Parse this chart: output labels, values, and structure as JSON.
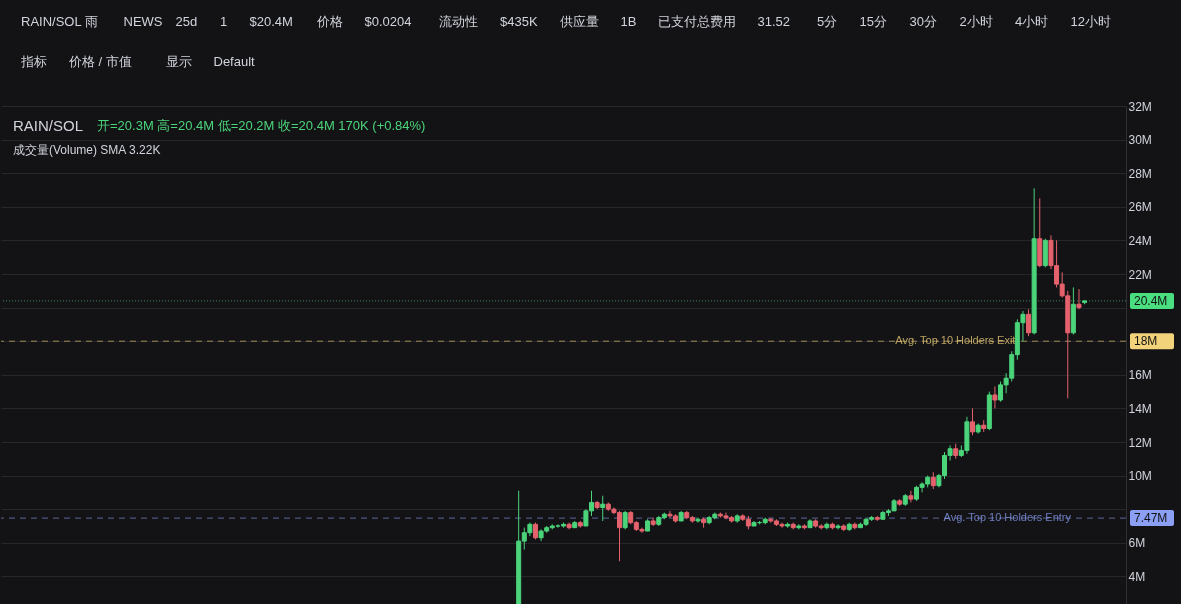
{
  "chart_data": {
    "type": "candlestick",
    "title": "RAIN/SOL",
    "subtitle": "开=20.3M  高=20.4M  低=20.2M  收=20.4M  170K (+0.84%)",
    "categories": [
      null,
      null,
      null,
      null,
      null,
      null,
      null,
      null,
      null,
      null,
      null,
      null,
      null,
      null,
      null,
      null,
      null,
      null,
      null,
      null,
      null,
      null,
      null,
      null,
      null,
      null,
      null,
      null,
      null,
      null,
      null,
      null,
      null,
      null,
      null,
      null,
      null,
      null,
      null,
      null,
      null,
      null,
      null,
      null,
      null,
      null,
      null,
      null,
      null,
      null,
      null,
      null,
      null,
      null,
      null,
      null,
      null,
      null,
      null,
      null,
      null,
      null,
      null,
      null,
      null,
      null,
      null,
      null,
      null,
      null,
      null,
      null,
      null,
      null,
      null,
      null,
      null,
      null,
      null,
      null,
      null,
      null,
      null,
      null,
      null,
      null,
      null,
      null,
      null,
      null,
      null,
      null,
      null,
      null,
      null,
      null,
      null,
      null,
      null,
      null,
      null,
      null,
      null,
      null,
      null,
      null,
      null,
      null,
      null,
      null,
      null,
      null,
      null,
      null,
      null,
      null,
      null,
      null,
      null,
      null,
      null,
      null,
      null,
      null,
      null,
      null,
      null,
      null,
      null,
      null,
      null,
      null,
      null,
      null,
      null,
      null,
      null,
      null,
      null,
      null,
      null,
      null,
      null,
      null,
      null,
      null,
      null,
      null,
      null,
      null,
      null,
      null,
      null,
      null,
      null,
      null,
      null,
      null,
      null,
      null,
      null,
      null,
      null,
      null,
      null,
      null,
      null,
      null,
      null,
      null,
      null,
      null,
      null,
      null,
      null,
      null,
      null,
      null,
      null,
      null,
      null,
      null,
      null,
      null,
      null,
      null,
      null,
      null,
      null,
      null,
      null,
      null,
      null,
      null,
      null,
      null,
      null,
      null,
      null
    ],
    "ohlc": [
      null,
      null,
      null,
      null,
      null,
      null,
      null,
      null,
      null,
      null,
      null,
      null,
      null,
      null,
      null,
      null,
      null,
      null,
      null,
      null,
      null,
      null,
      null,
      null,
      null,
      null,
      null,
      null,
      null,
      null,
      null,
      null,
      null,
      null,
      null,
      null,
      null,
      null,
      null,
      null,
      null,
      null,
      null,
      null,
      null,
      null,
      null,
      null,
      null,
      null,
      null,
      null,
      null,
      null,
      null,
      null,
      null,
      null,
      null,
      null,
      null,
      null,
      null,
      null,
      null,
      null,
      null,
      null,
      null,
      null,
      null,
      null,
      null,
      null,
      null,
      null,
      null,
      null,
      null,
      null,
      null,
      null,
      null,
      null,
      null,
      null,
      null,
      null,
      null,
      null,
      null,
      [
        2.1,
        9.1,
        2.0,
        6.1
      ],
      [
        6.1,
        6.9,
        5.6,
        6.6
      ],
      [
        6.6,
        7.2,
        6.4,
        7.1
      ],
      [
        7.1,
        7.2,
        6.2,
        6.3
      ],
      [
        6.3,
        6.8,
        6.1,
        6.7
      ],
      [
        6.7,
        7.0,
        6.6,
        6.9
      ],
      [
        6.9,
        7.1,
        6.8,
        7.0
      ],
      [
        7.0,
        7.1,
        6.9,
        7.0
      ],
      [
        7.0,
        7.2,
        6.9,
        7.1
      ],
      [
        7.1,
        7.2,
        6.8,
        6.9
      ],
      [
        6.9,
        7.3,
        6.9,
        7.2
      ],
      [
        7.2,
        7.3,
        6.9,
        7.0
      ],
      [
        7.0,
        8.0,
        7.0,
        7.9
      ],
      [
        7.9,
        9.1,
        7.6,
        8.4
      ],
      [
        8.4,
        8.5,
        8.0,
        8.1
      ],
      [
        8.1,
        8.8,
        7.3,
        8.3
      ],
      [
        8.3,
        8.4,
        7.9,
        8.0
      ],
      [
        8.0,
        8.1,
        7.7,
        7.8
      ],
      [
        7.8,
        7.9,
        4.9,
        6.9
      ],
      [
        6.9,
        7.9,
        6.8,
        7.8
      ],
      [
        7.8,
        7.9,
        7.1,
        7.2
      ],
      [
        7.2,
        7.3,
        6.7,
        6.8
      ],
      [
        6.8,
        6.9,
        6.6,
        6.7
      ],
      [
        6.7,
        7.4,
        6.7,
        7.3
      ],
      [
        7.3,
        7.5,
        7.0,
        7.1
      ],
      [
        7.1,
        7.6,
        7.0,
        7.5
      ],
      [
        7.5,
        7.8,
        7.4,
        7.7
      ],
      [
        7.7,
        7.9,
        7.5,
        7.6
      ],
      [
        7.6,
        7.7,
        7.2,
        7.3
      ],
      [
        7.3,
        7.9,
        7.3,
        7.8
      ],
      [
        7.8,
        7.9,
        7.4,
        7.5
      ],
      [
        7.5,
        7.6,
        7.2,
        7.3
      ],
      [
        7.3,
        7.5,
        7.2,
        7.4
      ],
      [
        7.4,
        7.5,
        6.9,
        7.2
      ],
      [
        7.2,
        7.6,
        7.1,
        7.5
      ],
      [
        7.5,
        7.8,
        7.4,
        7.7
      ],
      [
        7.7,
        7.8,
        7.5,
        7.6
      ],
      [
        7.6,
        7.8,
        7.4,
        7.5
      ],
      [
        7.5,
        7.6,
        7.2,
        7.3
      ],
      [
        7.3,
        7.7,
        7.2,
        7.6
      ],
      [
        7.6,
        7.7,
        7.3,
        7.4
      ],
      [
        7.4,
        7.6,
        6.8,
        7.0
      ],
      [
        7.0,
        7.3,
        7.0,
        7.2
      ],
      [
        7.2,
        7.3,
        7.1,
        7.2
      ],
      [
        7.2,
        7.5,
        7.1,
        7.4
      ],
      [
        7.4,
        7.5,
        7.2,
        7.3
      ],
      [
        7.3,
        7.4,
        7.0,
        7.1
      ],
      [
        7.1,
        7.2,
        6.9,
        7.0
      ],
      [
        7.0,
        7.2,
        6.9,
        7.1
      ],
      [
        7.1,
        7.2,
        6.8,
        6.9
      ],
      [
        6.9,
        7.1,
        6.8,
        7.0
      ],
      [
        7.0,
        7.1,
        6.8,
        6.9
      ],
      [
        6.9,
        7.4,
        6.9,
        7.3
      ],
      [
        7.3,
        7.4,
        6.9,
        7.0
      ],
      [
        7.0,
        7.1,
        6.8,
        6.9
      ],
      [
        6.9,
        7.2,
        6.8,
        7.1
      ],
      [
        7.1,
        7.2,
        6.8,
        6.9
      ],
      [
        6.9,
        7.1,
        6.8,
        7.0
      ],
      [
        7.0,
        7.1,
        6.7,
        6.8
      ],
      [
        6.8,
        7.2,
        6.7,
        7.1
      ],
      [
        7.1,
        7.2,
        6.8,
        6.9
      ],
      [
        6.9,
        7.2,
        6.9,
        7.1
      ],
      [
        7.1,
        7.5,
        7.0,
        7.4
      ],
      [
        7.4,
        7.6,
        7.3,
        7.5
      ],
      [
        7.5,
        7.6,
        7.3,
        7.4
      ],
      [
        7.4,
        7.9,
        7.4,
        7.8
      ],
      [
        7.8,
        8.0,
        7.6,
        7.9
      ],
      [
        7.9,
        8.6,
        7.9,
        8.5
      ],
      [
        8.5,
        8.6,
        8.2,
        8.3
      ],
      [
        8.3,
        8.9,
        8.2,
        8.8
      ],
      [
        8.8,
        9.1,
        8.4,
        8.6
      ],
      [
        8.6,
        9.4,
        8.5,
        9.3
      ],
      [
        9.3,
        9.6,
        9.0,
        9.5
      ],
      [
        9.5,
        10.0,
        9.3,
        9.9
      ],
      [
        9.9,
        10.2,
        9.2,
        9.4
      ],
      [
        9.4,
        10.1,
        9.3,
        10.0
      ],
      [
        10.0,
        11.4,
        9.8,
        11.2
      ],
      [
        11.2,
        11.8,
        10.9,
        11.6
      ],
      [
        11.6,
        11.9,
        11.0,
        11.2
      ],
      [
        11.2,
        11.8,
        11.1,
        11.5
      ],
      [
        11.5,
        13.5,
        11.3,
        13.2
      ],
      [
        13.2,
        14.0,
        12.4,
        12.6
      ],
      [
        12.6,
        13.1,
        12.5,
        13.0
      ],
      [
        13.0,
        13.3,
        12.6,
        12.8
      ],
      [
        12.8,
        15.0,
        12.7,
        14.8
      ],
      [
        14.8,
        15.3,
        14.0,
        14.5
      ],
      [
        14.5,
        15.6,
        14.4,
        15.4
      ],
      [
        15.4,
        16.1,
        14.9,
        15.8
      ],
      [
        15.8,
        17.4,
        15.6,
        17.2
      ],
      [
        17.2,
        19.3,
        16.9,
        19.1
      ],
      [
        19.1,
        19.8,
        18.0,
        19.6
      ],
      [
        19.6,
        19.9,
        18.3,
        18.5
      ],
      [
        18.5,
        27.1,
        18.4,
        24.1
      ],
      [
        24.1,
        26.5,
        22.4,
        22.5
      ],
      [
        22.5,
        24.1,
        22.4,
        24.0
      ],
      [
        24.0,
        24.3,
        22.3,
        22.5
      ],
      [
        22.5,
        24.0,
        21.2,
        21.4
      ],
      [
        21.4,
        22.1,
        20.6,
        20.7
      ],
      [
        20.7,
        21.0,
        14.6,
        18.5
      ],
      [
        18.5,
        21.2,
        18.4,
        20.2
      ],
      [
        20.2,
        21.1,
        19.9,
        20.0
      ],
      [
        20.3,
        20.4,
        20.2,
        20.4
      ],
      null,
      null,
      null,
      null,
      null,
      null
    ],
    "ylim": [
      2,
      32
    ],
    "yticks": [
      {
        "value": 4,
        "label": "4M"
      },
      {
        "value": 6,
        "label": "6M"
      },
      {
        "value": 8,
        "label": null
      },
      {
        "value": 10,
        "label": "10M"
      },
      {
        "value": 12,
        "label": "12M"
      },
      {
        "value": 14,
        "label": "14M"
      },
      {
        "value": 16,
        "label": "16M"
      },
      {
        "value": 18,
        "label": null
      },
      {
        "value": 20,
        "label": null
      },
      {
        "value": 22,
        "label": "22M"
      },
      {
        "value": 24,
        "label": "24M"
      },
      {
        "value": 26,
        "label": "26M"
      },
      {
        "value": 28,
        "label": "28M"
      },
      {
        "value": 30,
        "label": "30M"
      },
      {
        "value": 32,
        "label": "32M"
      }
    ],
    "tick_labels": "y",
    "grid": "y",
    "ref_lines": [
      {
        "axis": "y",
        "value": 20.4,
        "label": "20.4M",
        "color": "#4ade80",
        "line_style": "dotted"
      },
      {
        "axis": "y",
        "value": 18,
        "label": "18M",
        "color": "#f2d27a",
        "line_style": "dashed"
      },
      {
        "axis": "y",
        "value": 7.47,
        "label": "7.47M",
        "color": "#8b9ff5",
        "line_style": "dashed"
      }
    ],
    "annotations": [
      "成交量(Volume) SMA  3.22K",
      {
        "text": "Avg. Top 10 Holders Exit",
        "y": 18
      },
      {
        "text": "Avg. Top 10 Holders Entry",
        "y": 7.47
      },
      "RAIN/SOL 雨",
      "NEWS",
      "25d",
      "1",
      "$20.4M",
      "价格",
      "$0.0204",
      "流动性",
      "$435K",
      "供应量",
      "1B",
      "已支付总费用",
      "31.52",
      "5分",
      "15分",
      "30分",
      "2小时",
      "4小时",
      "12小时",
      "指标",
      "价格 / 市值",
      "显示",
      "Default"
    ]
  }
}
